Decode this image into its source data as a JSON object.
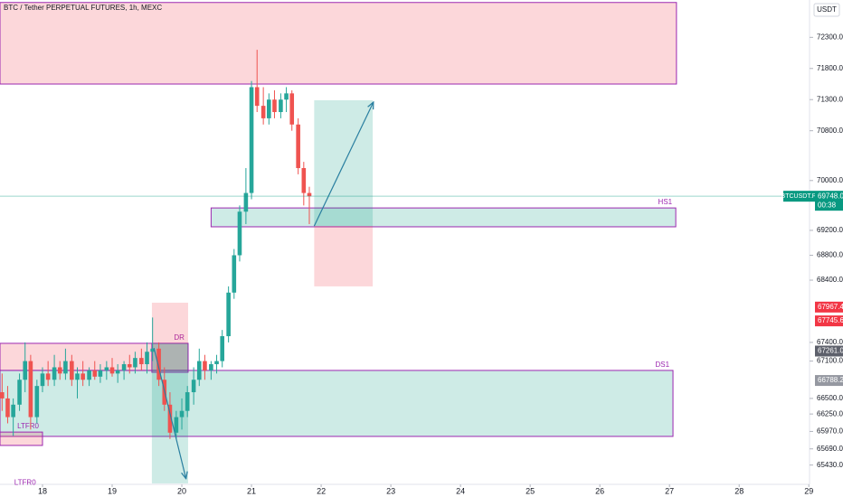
{
  "chart_data": {
    "type": "candlestick",
    "title": "BTC / Tether PERPETUAL FUTURES, 1h, MEXC",
    "currency": "USDT",
    "up_color": "#26a69a",
    "down_color": "#ef5350",
    "grid": false,
    "xlim": [
      17.39,
      29.01
    ],
    "ylim": [
      65120,
      72900
    ],
    "xticks": [
      18,
      19,
      20,
      21,
      22,
      23,
      24,
      25,
      26,
      27,
      28,
      29
    ],
    "yticks": [
      {
        "value": 72300,
        "label": "72300.0"
      },
      {
        "value": 71800,
        "label": "71800.0"
      },
      {
        "value": 71300,
        "label": "71300.0"
      },
      {
        "value": 70800,
        "label": "70800.0"
      },
      {
        "value": 70000,
        "label": "70000.0"
      },
      {
        "value": 69200,
        "label": "69200.0"
      },
      {
        "value": 68800,
        "label": "68800.0"
      },
      {
        "value": 68400,
        "label": "68400.0"
      },
      {
        "value": 67400,
        "label": "67400.0"
      },
      {
        "value": 67100,
        "label": "67100.0"
      },
      {
        "value": 66500,
        "label": "66500.0"
      },
      {
        "value": 66250,
        "label": "66250.0"
      },
      {
        "value": 65970,
        "label": "65970.0"
      },
      {
        "value": 65690,
        "label": "65690.0"
      },
      {
        "value": 65430,
        "label": "65430.0"
      }
    ],
    "x": [
      17.42,
      17.5,
      17.58,
      17.67,
      17.75,
      17.83,
      17.92,
      18.0,
      18.08,
      18.17,
      18.25,
      18.33,
      18.42,
      18.5,
      18.58,
      18.67,
      18.75,
      18.83,
      18.92,
      19.0,
      19.08,
      19.17,
      19.25,
      19.33,
      19.42,
      19.5,
      19.58,
      19.67,
      19.75,
      19.83,
      19.92,
      20.0,
      20.08,
      20.17,
      20.25,
      20.33,
      20.42,
      20.5,
      20.58,
      20.67,
      20.75,
      20.83,
      20.92,
      21.0,
      21.08,
      21.17,
      21.25,
      21.33,
      21.42,
      21.5,
      21.58,
      21.67,
      21.75,
      21.83
    ],
    "open": [
      66600,
      66500,
      66200,
      66400,
      66800,
      67100,
      66200,
      66700,
      66900,
      66800,
      67000,
      66900,
      67100,
      66800,
      66900,
      66800,
      66950,
      66850,
      66950,
      67000,
      66900,
      66950,
      67050,
      67000,
      67150,
      67050,
      67250,
      67300,
      66800,
      66400,
      65950,
      66200,
      66300,
      66600,
      66800,
      67100,
      66950,
      67050,
      67100,
      67500,
      68200,
      68800,
      69500,
      69800,
      71500,
      71200,
      71000,
      71300,
      71100,
      71300,
      71400,
      70900,
      70200,
      69800
    ],
    "high": [
      66900,
      66700,
      66500,
      66900,
      67400,
      67200,
      66800,
      67000,
      67100,
      67200,
      67100,
      67300,
      67200,
      67000,
      67100,
      67000,
      67100,
      67050,
      67100,
      67150,
      67050,
      67100,
      67200,
      67250,
      67300,
      67400,
      67800,
      67400,
      67000,
      66600,
      66300,
      66500,
      66700,
      67000,
      67300,
      67200,
      67100,
      67200,
      67600,
      68300,
      68900,
      69600,
      70200,
      71600,
      72100,
      71500,
      71400,
      71450,
      71400,
      71500,
      71450,
      71000,
      70300,
      69900
    ],
    "low": [
      66300,
      66100,
      65900,
      66300,
      66600,
      66000,
      66100,
      66600,
      66700,
      66700,
      66800,
      66800,
      66700,
      66500,
      66700,
      66700,
      66800,
      66750,
      66800,
      66850,
      66750,
      66800,
      66900,
      66900,
      66950,
      66900,
      67100,
      66700,
      66300,
      65850,
      65850,
      66000,
      66200,
      66400,
      66700,
      66800,
      66800,
      66900,
      67000,
      67400,
      68100,
      68700,
      69300,
      69700,
      71100,
      70900,
      70900,
      71000,
      71000,
      71100,
      70800,
      70100,
      69600,
      69300
    ],
    "close": [
      66500,
      66200,
      66400,
      66800,
      67100,
      66200,
      66700,
      66900,
      66800,
      67000,
      66900,
      67100,
      66800,
      66900,
      66800,
      66950,
      66850,
      66950,
      67000,
      66900,
      66950,
      67050,
      67000,
      67150,
      67050,
      67250,
      67300,
      66800,
      66400,
      65950,
      66200,
      66300,
      66600,
      66800,
      67100,
      66950,
      67050,
      67100,
      67500,
      68200,
      68800,
      69500,
      69800,
      71500,
      71200,
      71000,
      71300,
      71100,
      71300,
      71400,
      70900,
      70200,
      69800,
      69748
    ],
    "zones": [
      {
        "x": [
          17.39,
          27.1
        ],
        "y": [
          71550,
          72860
        ],
        "color": "#f23645"
      },
      {
        "label": "HS1",
        "x": [
          20.42,
          27.09
        ],
        "y": [
          69257,
          69560
        ],
        "color": "#089981"
      },
      {
        "label": "DS1",
        "x": [
          17.39,
          27.05
        ],
        "y": [
          65890,
          66950
        ],
        "color": "#089981"
      },
      {
        "x": [
          17.39,
          20.09
        ],
        "y": [
          66950,
          67385
        ],
        "color": "#f23645"
      },
      {
        "label": "DR",
        "x": [
          19.57,
          20.09
        ],
        "y": [
          66920,
          67385
        ],
        "color": "#434651"
      },
      {
        "label": "LTFR0",
        "x": [
          17.39,
          18.0
        ],
        "y": [
          65745,
          65960
        ],
        "color": "#f23645"
      }
    ],
    "positions": [
      {
        "x": [
          19.57,
          20.09
        ],
        "entry": 67385,
        "target": 65135,
        "stop": 68038
      },
      {
        "x": [
          21.9,
          22.74
        ],
        "entry": 69270,
        "target": 71290,
        "stop": 68300
      }
    ],
    "arrows": [
      {
        "x": [
          19.6,
          20.06
        ],
        "y": [
          67310,
          65210
        ]
      },
      {
        "x": [
          21.9,
          22.75
        ],
        "y": [
          69270,
          71260
        ]
      }
    ],
    "annotations": [
      {
        "text": "LTFR0",
        "x": 17.75,
        "y": 65140
      }
    ],
    "symbol": "BTCUSDT.P",
    "countdown": "00:38",
    "price_labels": [
      {
        "value": 69748,
        "label": "69748.0",
        "color": "#089981"
      },
      {
        "value": 67967.4,
        "label": "67967.4",
        "color": "#f23645"
      },
      {
        "value": 67745.6,
        "label": "67745.6",
        "color": "#f23645"
      },
      {
        "value": 67261,
        "label": "67261.0",
        "color": "#5d606b"
      },
      {
        "value": 66788.2,
        "label": "66788.2",
        "color": "#9598a1"
      }
    ]
  }
}
